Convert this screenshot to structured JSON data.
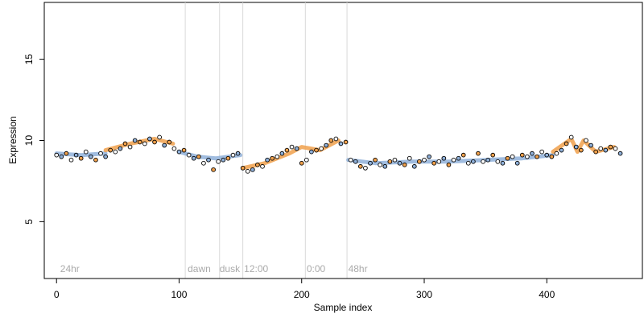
{
  "chart_data": {
    "type": "scatter",
    "title": "",
    "xlabel": "Sample index",
    "ylabel": "Expression",
    "xlim": [
      -10,
      478
    ],
    "ylim": [
      1.5,
      18.5
    ],
    "x_ticks": [
      0,
      100,
      200,
      300,
      400
    ],
    "y_ticks": [
      5,
      10,
      15
    ],
    "grid": false,
    "colors": {
      "point_outline": "#000000",
      "fill_light": "#ffffff",
      "fill_blue": "#8fb0d9",
      "fill_orange": "#f0a04b",
      "trend_blue": "#8fb0d9",
      "trend_orange": "#f0a04b",
      "divider": "#d9d9d9",
      "annotation": "#aaaaaa"
    },
    "dividers": [
      105,
      133,
      152,
      203,
      237
    ],
    "annotations": [
      {
        "x": 3,
        "label": "24hr"
      },
      {
        "x": 107,
        "label": "dawn"
      },
      {
        "x": 133,
        "label": "dusk"
      },
      {
        "x": 153,
        "label": "12:00"
      },
      {
        "x": 204,
        "label": "0:00"
      },
      {
        "x": 238,
        "label": "48hr"
      }
    ],
    "trend_segments": [
      {
        "color": "blue",
        "points": [
          [
            0,
            9.2
          ],
          [
            20,
            9.1
          ],
          [
            40,
            9.2
          ]
        ]
      },
      {
        "color": "orange",
        "points": [
          [
            40,
            9.4
          ],
          [
            60,
            9.8
          ],
          [
            80,
            10.1
          ],
          [
            95,
            9.8
          ]
        ]
      },
      {
        "color": "blue",
        "points": [
          [
            100,
            9.3
          ],
          [
            115,
            9.0
          ],
          [
            130,
            8.9
          ],
          [
            150,
            9.1
          ]
        ]
      },
      {
        "color": "orange",
        "points": [
          [
            152,
            8.3
          ],
          [
            170,
            8.6
          ],
          [
            190,
            9.2
          ],
          [
            200,
            9.6
          ],
          [
            215,
            9.4
          ],
          [
            230,
            10.0
          ]
        ]
      },
      {
        "color": "blue",
        "points": [
          [
            238,
            8.8
          ],
          [
            260,
            8.6
          ],
          [
            290,
            8.7
          ],
          [
            320,
            8.7
          ],
          [
            350,
            8.8
          ],
          [
            380,
            8.9
          ],
          [
            405,
            9.1
          ]
        ]
      },
      {
        "color": "orange",
        "points": [
          [
            405,
            9.3
          ],
          [
            420,
            10.1
          ],
          [
            425,
            9.3
          ],
          [
            430,
            10.0
          ],
          [
            440,
            9.3
          ],
          [
            455,
            9.6
          ]
        ]
      }
    ],
    "series": [
      {
        "x": [
          0,
          4,
          8,
          12,
          16,
          20,
          24,
          28,
          32,
          36,
          40,
          44,
          48,
          52,
          56,
          60,
          64,
          68,
          72,
          76,
          80,
          84,
          88,
          92,
          96,
          100,
          104,
          108,
          112,
          116,
          120,
          124,
          128,
          132,
          136,
          140,
          144,
          148,
          152,
          156,
          160,
          164,
          168,
          172,
          176,
          180,
          184,
          188,
          192,
          196,
          200,
          204,
          208,
          212,
          216,
          220,
          224,
          228,
          232,
          236,
          240,
          244,
          248,
          252,
          256,
          260,
          264,
          268,
          272,
          276,
          280,
          284,
          288,
          292,
          296,
          300,
          304,
          308,
          312,
          316,
          320,
          324,
          328,
          332,
          336,
          340,
          344,
          348,
          352,
          356,
          360,
          364,
          368,
          372,
          376,
          380,
          384,
          388,
          392,
          396,
          400,
          404,
          408,
          412,
          416,
          420,
          424,
          428,
          432,
          436,
          440,
          444,
          448,
          452,
          456,
          460
        ],
        "y": [
          9.1,
          9.0,
          9.2,
          8.8,
          9.1,
          8.9,
          9.3,
          9.0,
          8.8,
          9.2,
          9.0,
          9.4,
          9.3,
          9.5,
          9.8,
          9.6,
          10.0,
          9.9,
          9.8,
          10.1,
          9.9,
          10.2,
          9.7,
          9.9,
          9.5,
          9.3,
          9.4,
          9.1,
          8.9,
          9.0,
          8.6,
          8.8,
          8.2,
          8.7,
          8.8,
          8.9,
          9.1,
          9.2,
          8.3,
          8.1,
          8.2,
          8.5,
          8.4,
          8.8,
          8.9,
          9.0,
          9.2,
          9.4,
          9.6,
          9.5,
          8.6,
          8.8,
          9.3,
          9.4,
          9.5,
          9.7,
          10.0,
          10.1,
          9.8,
          9.9,
          8.8,
          8.7,
          8.4,
          8.3,
          8.6,
          8.8,
          8.5,
          8.4,
          8.7,
          8.8,
          8.6,
          8.5,
          8.9,
          8.4,
          8.7,
          8.8,
          9.0,
          8.6,
          8.7,
          8.9,
          8.5,
          8.8,
          8.9,
          9.1,
          8.6,
          8.7,
          9.2,
          8.7,
          8.8,
          9.1,
          8.7,
          8.6,
          8.9,
          9.0,
          8.6,
          9.1,
          9.0,
          9.2,
          9.0,
          9.3,
          9.1,
          9.0,
          9.2,
          9.4,
          9.8,
          10.2,
          9.6,
          9.4,
          10.0,
          9.7,
          9.3,
          9.5,
          9.4,
          9.6,
          9.5,
          9.2
        ],
        "marker": "circle"
      }
    ]
  }
}
